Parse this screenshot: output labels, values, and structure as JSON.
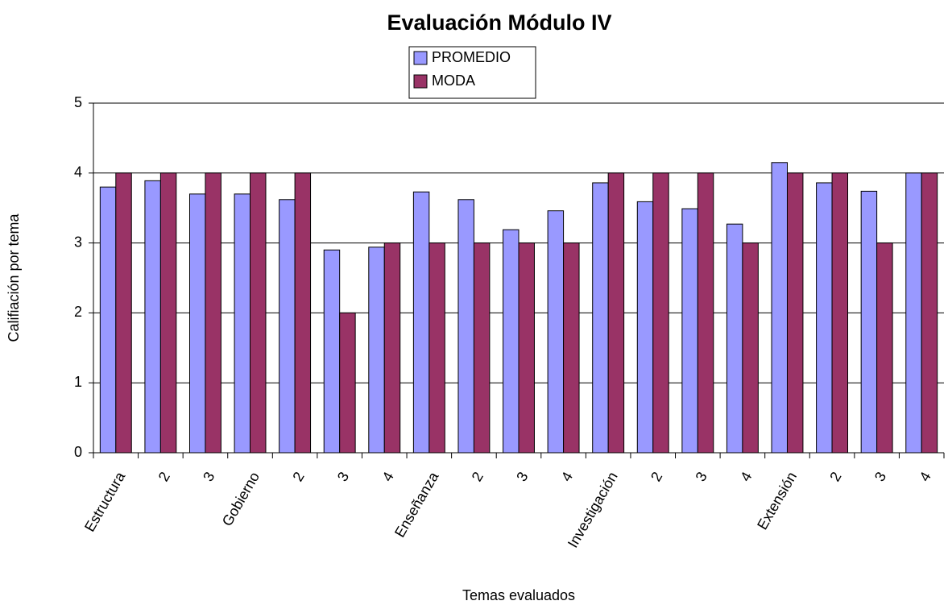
{
  "chart_data": {
    "type": "bar",
    "title": "Evaluación Módulo IV",
    "y_label": "Califiación por tema",
    "x_label": "Temas evaluados",
    "categories": [
      "Estructura",
      "2",
      "3",
      "Gobierno",
      "2",
      "3",
      "4",
      "Enseñanza",
      "2",
      "3",
      "4",
      "Investigación",
      "2",
      "3",
      "4",
      "Extensión",
      "2",
      "3",
      "4"
    ],
    "series": [
      {
        "name": "PROMEDIO",
        "color": "#9999ff",
        "values": [
          3.8,
          3.89,
          3.7,
          3.7,
          3.62,
          2.9,
          2.94,
          3.73,
          3.62,
          3.19,
          3.46,
          3.86,
          3.59,
          3.49,
          3.27,
          4.15,
          3.86,
          3.74,
          4.0
        ]
      },
      {
        "name": "MODA",
        "color": "#993366",
        "values": [
          4,
          4,
          4,
          4,
          4,
          2,
          3,
          3,
          3,
          3,
          3,
          4,
          4,
          4,
          3,
          4,
          4,
          3,
          4
        ]
      }
    ],
    "ylim": [
      0,
      5
    ],
    "yticks": [
      0,
      1,
      2,
      3,
      4,
      5
    ],
    "grid": true,
    "legend": "top"
  }
}
